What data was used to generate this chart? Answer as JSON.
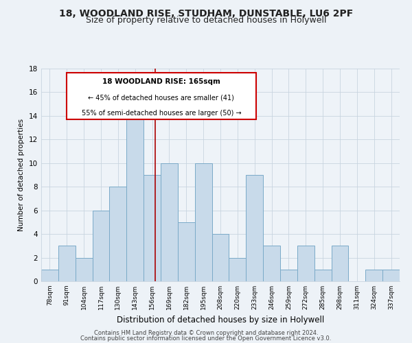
{
  "title": "18, WOODLAND RISE, STUDHAM, DUNSTABLE, LU6 2PF",
  "subtitle": "Size of property relative to detached houses in Holywell",
  "xlabel": "Distribution of detached houses by size in Holywell",
  "ylabel": "Number of detached properties",
  "bin_labels": [
    "78sqm",
    "91sqm",
    "104sqm",
    "117sqm",
    "130sqm",
    "143sqm",
    "156sqm",
    "169sqm",
    "182sqm",
    "195sqm",
    "208sqm",
    "220sqm",
    "233sqm",
    "246sqm",
    "259sqm",
    "272sqm",
    "285sqm",
    "298sqm",
    "311sqm",
    "324sqm",
    "337sqm"
  ],
  "counts": [
    1,
    3,
    2,
    6,
    8,
    14,
    9,
    10,
    5,
    10,
    4,
    2,
    9,
    3,
    1,
    3,
    1,
    3,
    0,
    1,
    1
  ],
  "bar_color": "#c8daea",
  "bar_edge_color": "#7aaac8",
  "vline_color": "#aa0000",
  "annotation_title": "18 WOODLAND RISE: 165sqm",
  "annotation_line1": "← 45% of detached houses are smaller (41)",
  "annotation_line2": "55% of semi-detached houses are larger (50) →",
  "annotation_box_color": "#ffffff",
  "annotation_box_edge": "#cc0000",
  "ylim": [
    0,
    18
  ],
  "yticks": [
    0,
    2,
    4,
    6,
    8,
    10,
    12,
    14,
    16,
    18
  ],
  "footer_line1": "Contains HM Land Registry data © Crown copyright and database right 2024.",
  "footer_line2": "Contains public sector information licensed under the Open Government Licence v3.0.",
  "background_color": "#edf2f7",
  "plot_bg_color": "#eef3f8",
  "grid_color": "#c8d4e0",
  "title_fontsize": 10,
  "subtitle_fontsize": 9
}
